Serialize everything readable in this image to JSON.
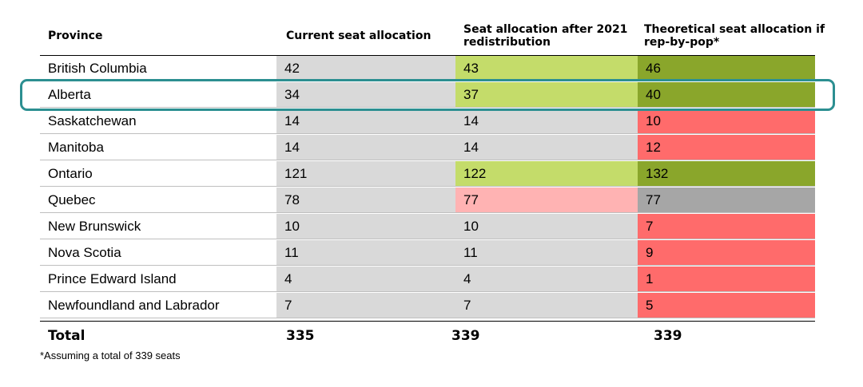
{
  "chart_data": {
    "type": "table",
    "columns": [
      "Province",
      "Current seat allocation",
      "Seat allocation after 2021 redistribution",
      "Theoretical seat allocation if rep-by-pop*"
    ],
    "rows": [
      {
        "province": "British Columbia",
        "current": "42",
        "after_2021": "43",
        "rep_by_pop": "46"
      },
      {
        "province": "Alberta",
        "current": "34",
        "after_2021": "37",
        "rep_by_pop": "40"
      },
      {
        "province": "Saskatchewan",
        "current": "14",
        "after_2021": "14",
        "rep_by_pop": "10"
      },
      {
        "province": "Manitoba",
        "current": "14",
        "after_2021": "14",
        "rep_by_pop": "12"
      },
      {
        "province": "Ontario",
        "current": "121",
        "after_2021": "122",
        "rep_by_pop": "132"
      },
      {
        "province": "Quebec",
        "current": "78",
        "after_2021": "77",
        "rep_by_pop": "77"
      },
      {
        "province": "New Brunswick",
        "current": "10",
        "after_2021": "10",
        "rep_by_pop": "7"
      },
      {
        "province": "Nova Scotia",
        "current": "11",
        "after_2021": "11",
        "rep_by_pop": "9"
      },
      {
        "province": "Prince Edward Island",
        "current": "4",
        "after_2021": "4",
        "rep_by_pop": "1"
      },
      {
        "province": "Newfoundland and Labrador",
        "current": "7",
        "after_2021": "7",
        "rep_by_pop": "5"
      }
    ],
    "total": {
      "label": "Total",
      "current": "335",
      "after_2021": "339",
      "rep_by_pop": "339"
    },
    "footnote": "*Assuming a total of 339 seats",
    "highlighted_row": "Alberta",
    "colors": {
      "neutral": "#d9d9d9",
      "gain_small": "#c4dc6a",
      "gain_large": "#8aa62b",
      "loss_small": "#ffb3b3",
      "loss_large": "#ff6b6b",
      "no_change_gray": "#a6a6a6",
      "highlight_border": "#2c8f91"
    },
    "cell_fills": {
      "current": [
        "neutral",
        "neutral",
        "neutral",
        "neutral",
        "neutral",
        "neutral",
        "neutral",
        "neutral",
        "neutral",
        "neutral"
      ],
      "after_2021": [
        "gain_small",
        "gain_small",
        "neutral",
        "neutral",
        "gain_small",
        "loss_small",
        "neutral",
        "neutral",
        "neutral",
        "neutral"
      ],
      "rep_by_pop": [
        "gain_large",
        "gain_large",
        "loss_large",
        "loss_large",
        "gain_large",
        "no_change_gray",
        "loss_large",
        "loss_large",
        "loss_large",
        "loss_large"
      ]
    }
  }
}
